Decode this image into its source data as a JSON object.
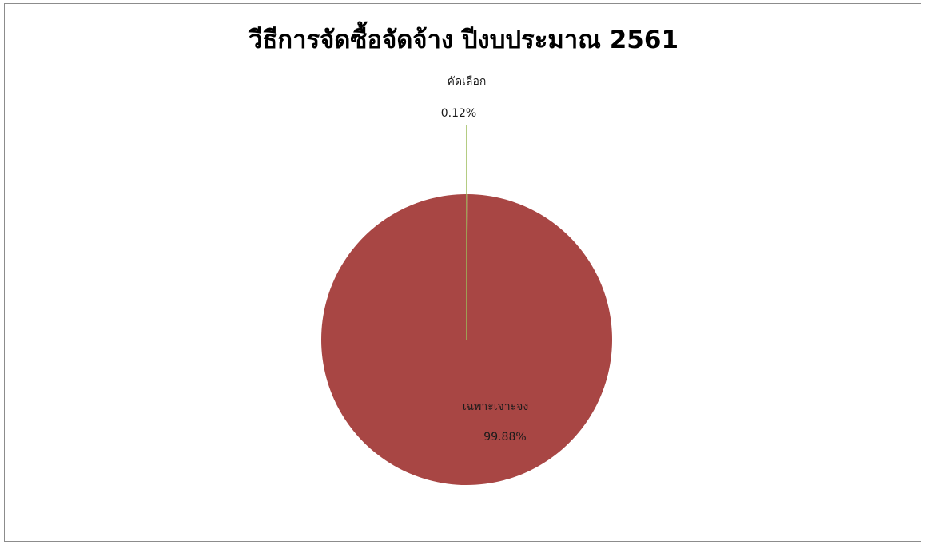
{
  "chart_data": {
    "type": "pie",
    "title": "วีธีการจัดซื้อจัดจ้าง ปีงบประมาณ 2561",
    "slices": [
      {
        "label": "คัดเลือก",
        "value": 0.12,
        "value_label": "0.12%",
        "color": "#9bbb59"
      },
      {
        "label": "เฉพาะเจาะจง",
        "value": 99.88,
        "value_label": "99.88%",
        "color": "#a84644"
      }
    ],
    "legend": "none"
  }
}
